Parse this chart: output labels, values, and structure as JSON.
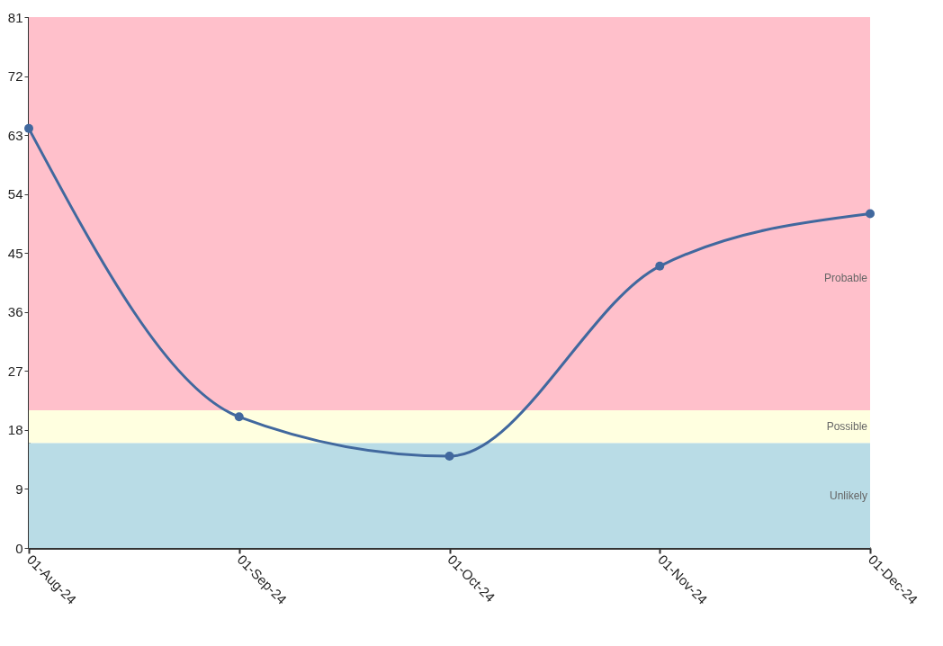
{
  "chart_data": {
    "type": "line",
    "categories": [
      "01-Aug-24",
      "01-Sep-24",
      "01-Oct-24",
      "01-Nov-24",
      "01-Dec-24"
    ],
    "series": [
      {
        "color": "#41689e",
        "values": [
          64,
          20,
          14,
          43,
          51
        ]
      }
    ],
    "ylim": [
      0,
      81
    ],
    "yticks": [
      0,
      9,
      18,
      27,
      36,
      45,
      54,
      63,
      72,
      81
    ],
    "grid": false,
    "marker": "circle",
    "line_style": "solid",
    "bands": [
      {
        "axis": "y",
        "from": 21,
        "to": 81,
        "label": "Probable",
        "color": "#ffc0cb"
      },
      {
        "axis": "y",
        "from": 16,
        "to": 21,
        "label": "Possible",
        "color": "#ffffe0"
      },
      {
        "axis": "y",
        "from": 0,
        "to": 16,
        "label": "Unlikely",
        "color": "#b9dce6"
      }
    ]
  }
}
